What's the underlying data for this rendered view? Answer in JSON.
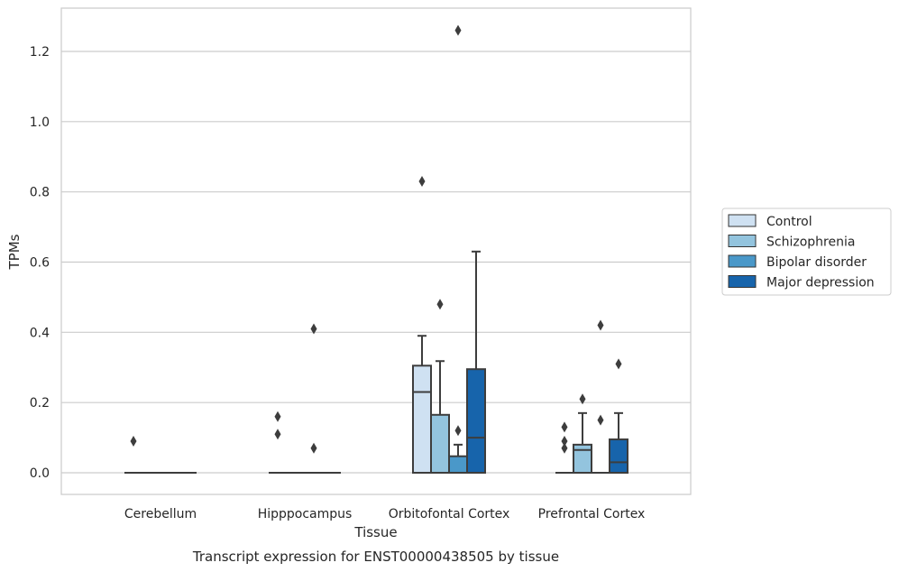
{
  "chart_data": {
    "type": "box",
    "caption": "Transcript expression for ENST00000438505 by tissue",
    "xlabel": "Tissue",
    "ylabel": "TPMs",
    "ylim": [
      -0.06,
      1.32
    ],
    "yticks": [
      "0.0",
      "0.2",
      "0.4",
      "0.6",
      "0.8",
      "1.0",
      "1.2"
    ],
    "grid": "horizontal",
    "legend_position": "right",
    "categories": [
      "Cerebellum",
      "Hipppocampus",
      "Orbitofontal Cortex",
      "Prefrontal Cortex"
    ],
    "series": [
      {
        "name": "Control",
        "color": "#cfe1f2",
        "boxes": [
          {
            "q1": 0,
            "median": 0,
            "q3": 0,
            "whislo": 0,
            "whishi": 0,
            "fliers": [
              0.09
            ]
          },
          {
            "q1": 0,
            "median": 0,
            "q3": 0,
            "whislo": 0,
            "whishi": 0,
            "fliers": [
              0.16,
              0.11
            ]
          },
          {
            "q1": 0,
            "median": 0.23,
            "q3": 0.305,
            "whislo": 0,
            "whishi": 0.39,
            "fliers": [
              0.83
            ]
          },
          {
            "q1": 0,
            "median": 0,
            "q3": 0,
            "whislo": 0,
            "whishi": 0,
            "fliers": [
              0.13,
              0.09,
              0.07
            ]
          }
        ]
      },
      {
        "name": "Schizophrenia",
        "color": "#93c4de",
        "boxes": [
          {
            "q1": 0,
            "median": 0,
            "q3": 0,
            "whislo": 0,
            "whishi": 0,
            "fliers": []
          },
          {
            "q1": 0,
            "median": 0,
            "q3": 0,
            "whislo": 0,
            "whishi": 0,
            "fliers": []
          },
          {
            "q1": 0,
            "median": 0,
            "q3": 0.165,
            "whislo": 0,
            "whishi": 0.318,
            "fliers": [
              0.48
            ]
          },
          {
            "q1": 0,
            "median": 0.065,
            "q3": 0.08,
            "whislo": 0,
            "whishi": 0.17,
            "fliers": [
              0.21
            ]
          }
        ]
      },
      {
        "name": "Bipolar disorder",
        "color": "#4a98c9",
        "boxes": [
          {
            "q1": 0,
            "median": 0,
            "q3": 0,
            "whislo": 0,
            "whishi": 0,
            "fliers": []
          },
          {
            "q1": 0,
            "median": 0,
            "q3": 0,
            "whislo": 0,
            "whishi": 0,
            "fliers": [
              0.41,
              0.07
            ]
          },
          {
            "q1": 0,
            "median": 0,
            "q3": 0.047,
            "whislo": 0,
            "whishi": 0.08,
            "fliers": [
              0.12,
              1.26
            ]
          },
          {
            "q1": 0,
            "median": 0,
            "q3": 0,
            "whislo": 0,
            "whishi": 0,
            "fliers": [
              0.42,
              0.15
            ]
          }
        ]
      },
      {
        "name": "Major depression",
        "color": "#1764ab",
        "boxes": [
          {
            "q1": 0,
            "median": 0,
            "q3": 0,
            "whislo": 0,
            "whishi": 0,
            "fliers": []
          },
          {
            "q1": 0,
            "median": 0,
            "q3": 0,
            "whislo": 0,
            "whishi": 0,
            "fliers": []
          },
          {
            "q1": 0,
            "median": 0.1,
            "q3": 0.295,
            "whislo": 0,
            "whishi": 0.63,
            "fliers": []
          },
          {
            "q1": 0,
            "median": 0.03,
            "q3": 0.095,
            "whislo": 0,
            "whishi": 0.17,
            "fliers": [
              0.31
            ]
          }
        ]
      }
    ]
  }
}
